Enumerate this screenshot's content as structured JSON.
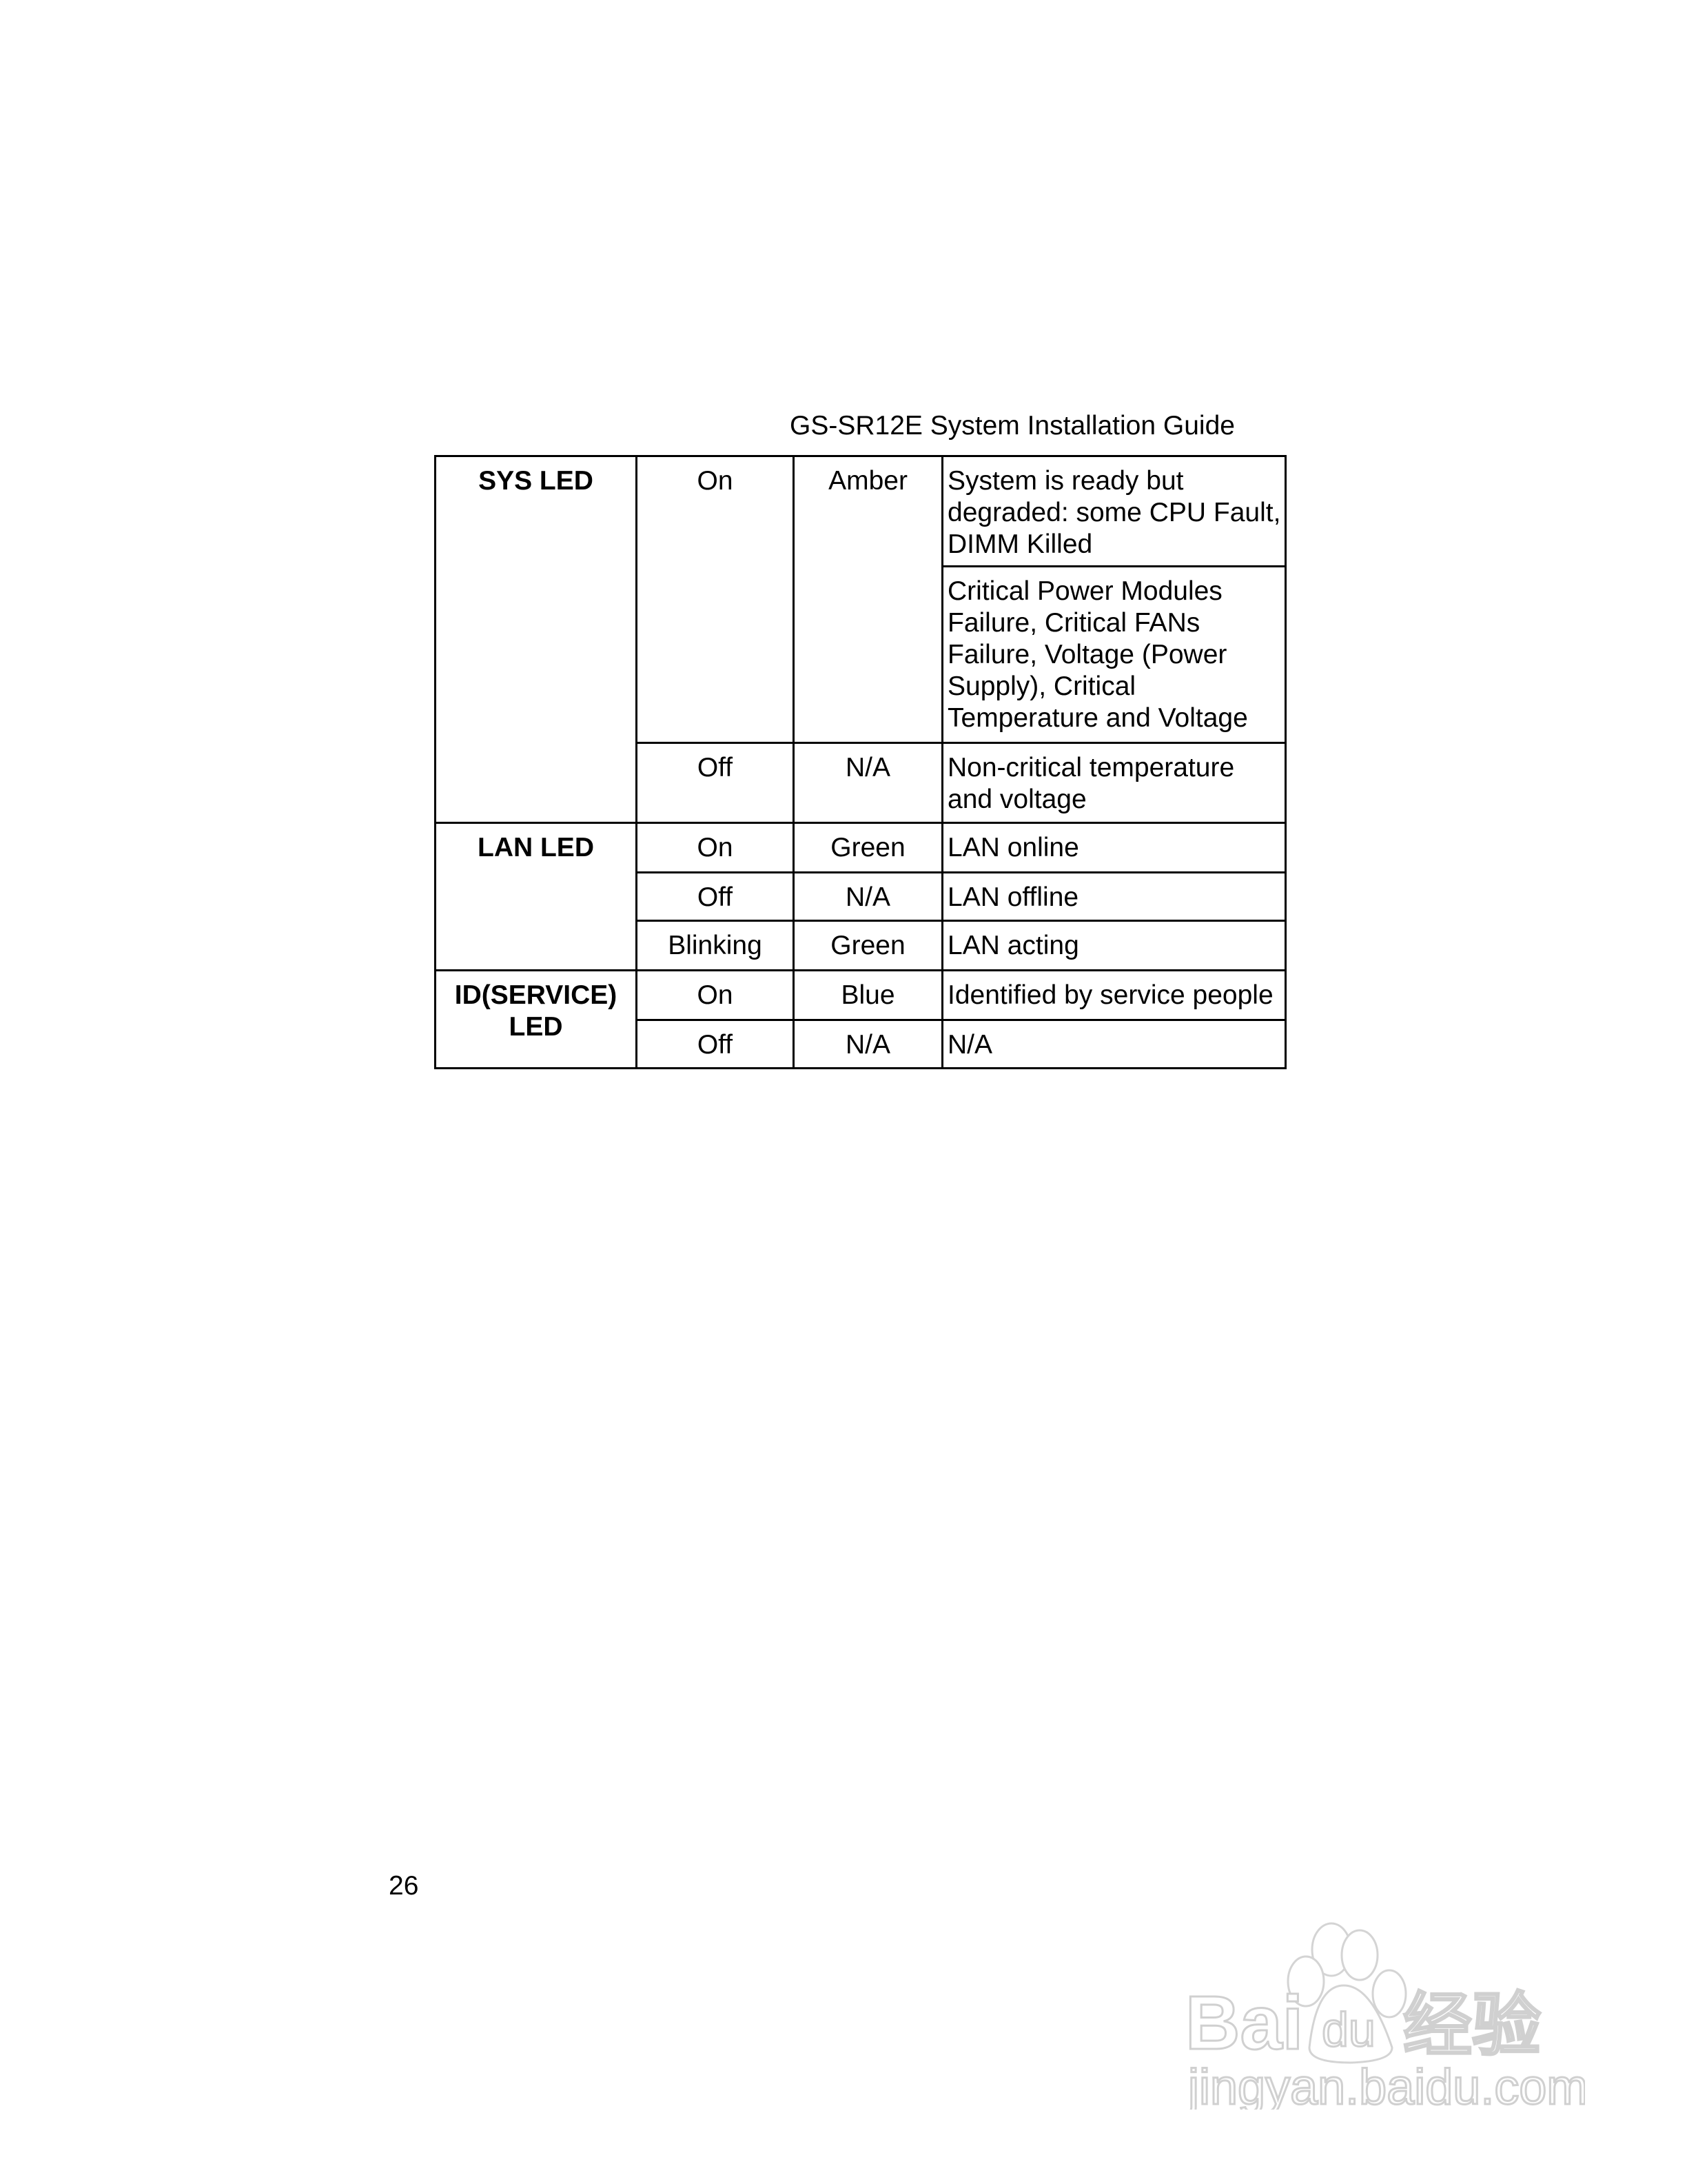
{
  "header": {
    "title": "GS-SR12E System Installation Guide"
  },
  "table": {
    "groups": [
      {
        "name": "SYS LED",
        "rows": [
          {
            "state": "On",
            "color": "Amber",
            "descriptions": [
              "System is ready but degraded: some CPU Fault, DIMM Killed",
              "Critical Power Modules Failure, Critical FANs Failure, Voltage (Power Supply), Critical Temperature and Voltage"
            ]
          },
          {
            "state": "Off",
            "color": "N/A",
            "descriptions": [
              "Non-critical temperature and voltage"
            ]
          }
        ]
      },
      {
        "name": "LAN LED",
        "rows": [
          {
            "state": "On",
            "color": "Green",
            "descriptions": [
              "LAN online"
            ]
          },
          {
            "state": "Off",
            "color": "N/A",
            "descriptions": [
              "LAN offline"
            ]
          },
          {
            "state": "Blinking",
            "color": "Green",
            "descriptions": [
              "LAN acting"
            ]
          }
        ]
      },
      {
        "name": "ID(SERVICE) LED",
        "rows": [
          {
            "state": "On",
            "color": "Blue",
            "descriptions": [
              "Identified by service people"
            ]
          },
          {
            "state": "Off",
            "color": "N/A",
            "descriptions": [
              "N/A"
            ]
          }
        ]
      }
    ]
  },
  "footer": {
    "page_number": "26"
  },
  "watermark": {
    "logo_text": "Baidu经验",
    "url_text": "jingyan.baidu.com"
  }
}
